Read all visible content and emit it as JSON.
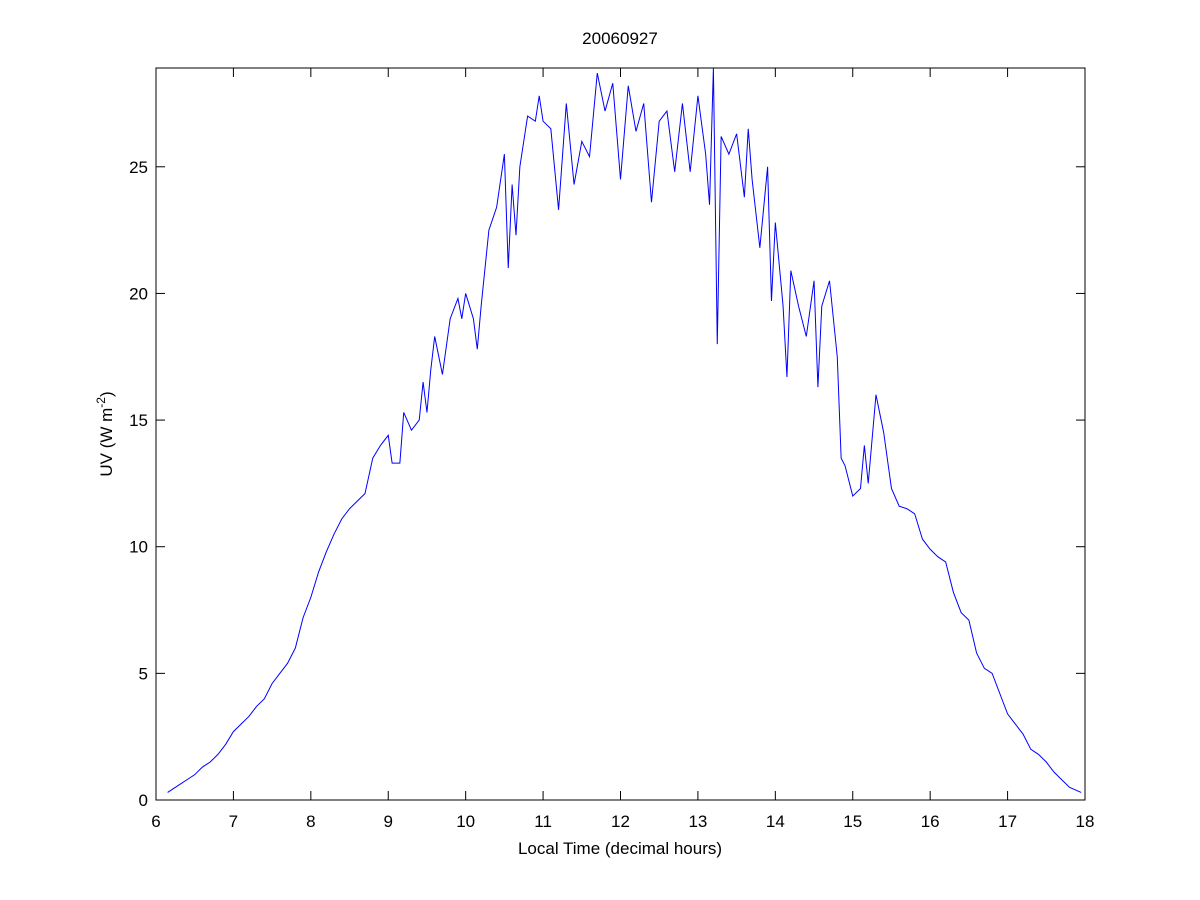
{
  "chart_data": {
    "type": "line",
    "title": "20060927",
    "xlabel": "Local Time (decimal hours)",
    "ylabel": [
      "UV (W m",
      "-2",
      ")"
    ],
    "color": "#0000ff",
    "xlim": [
      6,
      18
    ],
    "ylim": [
      0,
      28.9
    ],
    "xticks": [
      6,
      7,
      8,
      9,
      10,
      11,
      12,
      13,
      14,
      15,
      16,
      17,
      18
    ],
    "yticks": [
      0,
      5,
      10,
      15,
      20,
      25
    ],
    "x": [
      6.15,
      6.3,
      6.4,
      6.5,
      6.6,
      6.7,
      6.8,
      6.9,
      7.0,
      7.1,
      7.2,
      7.3,
      7.4,
      7.5,
      7.6,
      7.7,
      7.8,
      7.9,
      8.0,
      8.1,
      8.2,
      8.3,
      8.4,
      8.5,
      8.6,
      8.7,
      8.8,
      8.9,
      9.0,
      9.05,
      9.15,
      9.2,
      9.3,
      9.4,
      9.45,
      9.5,
      9.55,
      9.6,
      9.7,
      9.8,
      9.9,
      9.95,
      10.0,
      10.1,
      10.15,
      10.2,
      10.3,
      10.4,
      10.5,
      10.55,
      10.6,
      10.65,
      10.7,
      10.8,
      10.9,
      10.95,
      11.0,
      11.1,
      11.2,
      11.3,
      11.4,
      11.5,
      11.6,
      11.7,
      11.8,
      11.9,
      12.0,
      12.1,
      12.2,
      12.3,
      12.4,
      12.5,
      12.6,
      12.7,
      12.8,
      12.9,
      13.0,
      13.1,
      13.15,
      13.2,
      13.25,
      13.3,
      13.4,
      13.5,
      13.6,
      13.65,
      13.7,
      13.8,
      13.9,
      13.95,
      14.0,
      14.1,
      14.15,
      14.2,
      14.3,
      14.4,
      14.5,
      14.55,
      14.6,
      14.7,
      14.8,
      14.85,
      14.9,
      15.0,
      15.1,
      15.15,
      15.2,
      15.3,
      15.4,
      15.5,
      15.6,
      15.7,
      15.8,
      15.9,
      16.0,
      16.1,
      16.2,
      16.3,
      16.4,
      16.5,
      16.6,
      16.7,
      16.8,
      16.9,
      17.0,
      17.1,
      17.2,
      17.3,
      17.4,
      17.5,
      17.6,
      17.7,
      17.8,
      17.95
    ],
    "values": [
      0.3,
      0.6,
      0.8,
      1.0,
      1.3,
      1.5,
      1.8,
      2.2,
      2.7,
      3.0,
      3.3,
      3.7,
      4.0,
      4.6,
      5.0,
      5.4,
      6.0,
      7.2,
      8.0,
      9.0,
      9.8,
      10.5,
      11.1,
      11.5,
      11.8,
      12.1,
      13.5,
      14.0,
      14.4,
      13.3,
      13.3,
      15.3,
      14.6,
      15.0,
      16.5,
      15.3,
      17.0,
      18.3,
      16.8,
      19.0,
      19.8,
      19.0,
      20.0,
      19.0,
      17.8,
      19.5,
      22.5,
      23.4,
      25.5,
      21.0,
      24.3,
      22.3,
      25.0,
      27.0,
      26.8,
      27.8,
      26.8,
      26.5,
      23.3,
      27.5,
      24.3,
      26.0,
      25.4,
      28.7,
      27.2,
      28.3,
      24.5,
      28.2,
      26.4,
      27.5,
      23.6,
      26.8,
      27.2,
      24.8,
      27.5,
      24.8,
      27.8,
      25.5,
      23.5,
      28.9,
      18.0,
      26.2,
      25.5,
      26.3,
      23.8,
      26.5,
      24.5,
      21.8,
      25.0,
      19.7,
      22.8,
      19.5,
      16.7,
      20.9,
      19.5,
      18.3,
      20.5,
      16.3,
      19.5,
      20.5,
      17.5,
      13.5,
      13.2,
      12.0,
      12.3,
      14.0,
      12.5,
      16.0,
      14.5,
      12.3,
      11.6,
      11.5,
      11.3,
      10.3,
      9.9,
      9.6,
      9.4,
      8.2,
      7.4,
      7.1,
      5.8,
      5.2,
      5.0,
      4.2,
      3.4,
      3.0,
      2.6,
      2.0,
      1.8,
      1.5,
      1.1,
      0.8,
      0.5,
      0.3
    ]
  }
}
